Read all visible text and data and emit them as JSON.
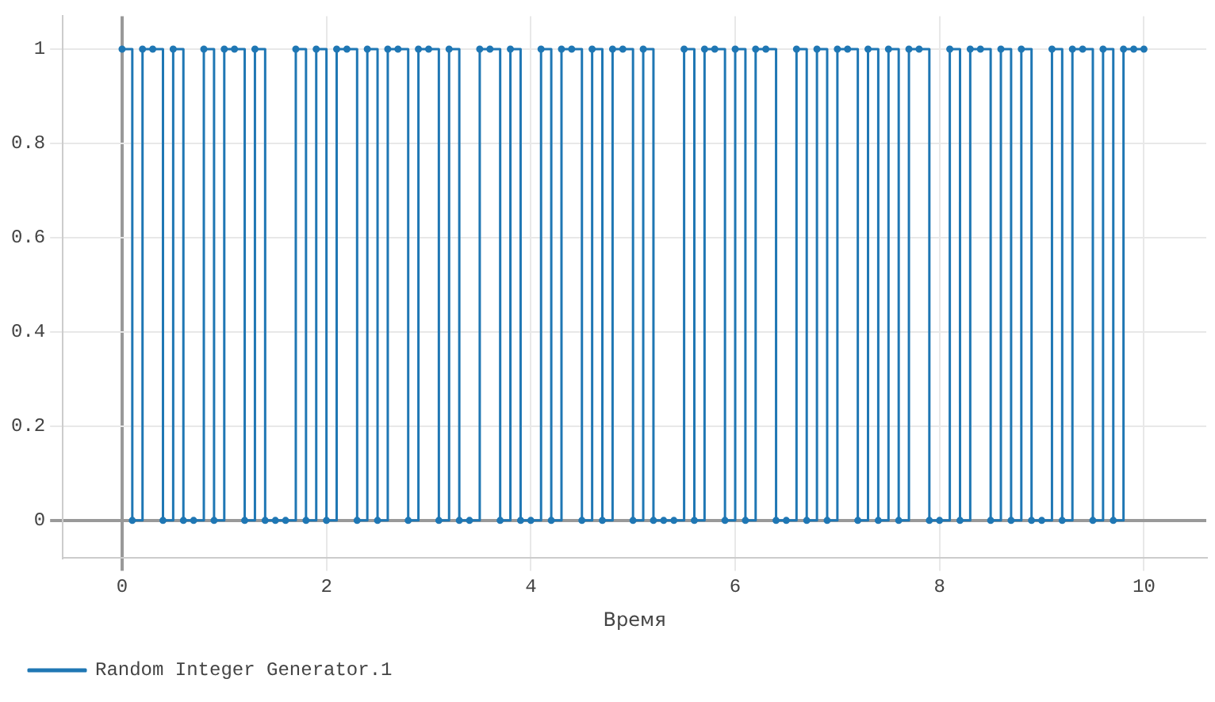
{
  "chart_data": {
    "type": "step",
    "xlabel": "Время",
    "x": [
      0,
      0.1,
      0.2,
      0.3,
      0.4,
      0.5,
      0.6,
      0.7,
      0.8,
      0.9,
      1,
      1.1,
      1.2,
      1.3,
      1.4,
      1.5,
      1.6,
      1.7,
      1.8,
      1.9,
      2,
      2.1,
      2.2,
      2.3,
      2.4,
      2.5,
      2.6,
      2.7,
      2.8,
      2.9,
      3,
      3.1,
      3.2,
      3.3,
      3.4,
      3.5,
      3.6,
      3.7,
      3.8,
      3.9,
      4,
      4.1,
      4.2,
      4.3,
      4.4,
      4.5,
      4.6,
      4.7,
      4.8,
      4.9,
      5,
      5.1,
      5.2,
      5.3,
      5.4,
      5.5,
      5.6,
      5.7,
      5.8,
      5.9,
      6,
      6.1,
      6.2,
      6.3,
      6.4,
      6.5,
      6.6,
      6.7,
      6.8,
      6.9,
      7,
      7.1,
      7.2,
      7.3,
      7.4,
      7.5,
      7.6,
      7.7,
      7.8,
      7.9,
      8,
      8.1,
      8.2,
      8.3,
      8.4,
      8.5,
      8.6,
      8.7,
      8.8,
      8.9,
      9,
      9.1,
      9.2,
      9.3,
      9.4,
      9.5,
      9.6,
      9.7,
      9.8,
      9.9,
      10
    ],
    "series": [
      {
        "name": "Random Integer Generator.1",
        "color": "#1f77b4",
        "values": [
          1,
          0,
          1,
          1,
          0,
          1,
          0,
          0,
          1,
          0,
          1,
          1,
          0,
          1,
          0,
          0,
          0,
          1,
          0,
          1,
          0,
          1,
          1,
          0,
          1,
          0,
          1,
          1,
          0,
          1,
          1,
          0,
          1,
          0,
          0,
          1,
          1,
          0,
          1,
          0,
          0,
          1,
          0,
          1,
          1,
          0,
          1,
          0,
          1,
          1,
          0,
          1,
          0,
          0,
          0,
          1,
          0,
          1,
          1,
          0,
          1,
          0,
          1,
          1,
          0,
          0,
          1,
          0,
          1,
          0,
          1,
          1,
          0,
          1,
          0,
          1,
          0,
          1,
          1,
          0,
          0,
          1,
          0,
          1,
          1,
          0,
          1,
          0,
          1,
          0,
          0,
          1,
          0,
          1,
          1,
          0,
          1,
          0,
          1,
          1,
          1
        ]
      }
    ],
    "xlim": [
      -0.58,
      10.61
    ],
    "ylim": [
      -0.08,
      1.07
    ],
    "xticks": [
      0,
      2,
      4,
      6,
      8,
      10
    ],
    "yticks": [
      0,
      0.2,
      0.4,
      0.6,
      0.8,
      1
    ],
    "grid": true,
    "legend": "bottom left",
    "marker": "circle"
  }
}
